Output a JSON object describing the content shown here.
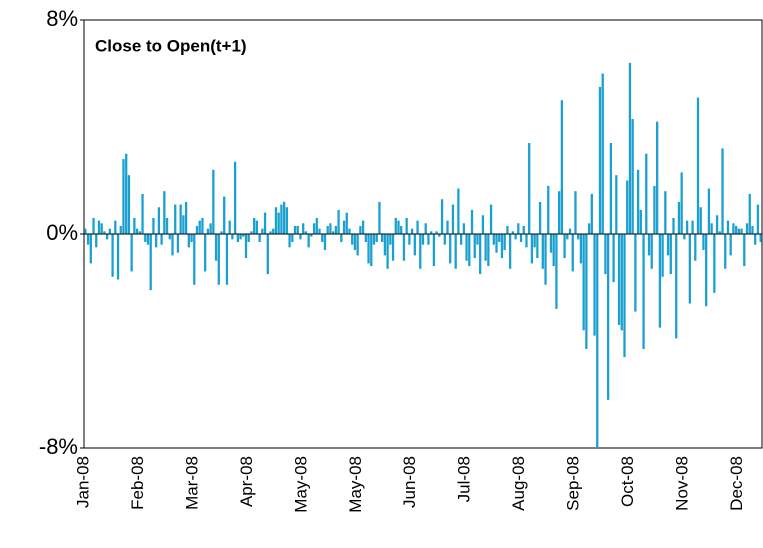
{
  "chart_data": {
    "type": "bar",
    "title": "Close to Open(t+1)",
    "color": "#1aa0d0",
    "ylim": [
      -8,
      8
    ],
    "yticks": [
      {
        "value": -8,
        "label": "-8%"
      },
      {
        "value": 0,
        "label": "0%"
      },
      {
        "value": 8,
        "label": "8%"
      }
    ],
    "categories": [
      "Jan-08",
      null,
      null,
      null,
      null,
      null,
      null,
      null,
      null,
      null,
      null,
      null,
      null,
      null,
      null,
      null,
      null,
      null,
      null,
      null,
      "Feb-08",
      null,
      null,
      null,
      null,
      null,
      null,
      null,
      null,
      null,
      null,
      null,
      null,
      null,
      null,
      null,
      null,
      null,
      null,
      null,
      "Mar-08",
      null,
      null,
      null,
      null,
      null,
      null,
      null,
      null,
      null,
      null,
      null,
      null,
      null,
      null,
      null,
      null,
      null,
      null,
      null,
      "Apr-08",
      null,
      null,
      null,
      null,
      null,
      null,
      null,
      null,
      null,
      null,
      null,
      null,
      null,
      null,
      null,
      null,
      null,
      null,
      null,
      "May-08",
      null,
      null,
      null,
      null,
      null,
      null,
      null,
      null,
      null,
      null,
      null,
      null,
      null,
      null,
      null,
      null,
      null,
      null,
      null,
      "May-08",
      null,
      null,
      null,
      null,
      null,
      null,
      null,
      null,
      null,
      null,
      null,
      null,
      null,
      null,
      null,
      null,
      null,
      null,
      null,
      "Jun-08",
      null,
      null,
      null,
      null,
      null,
      null,
      null,
      null,
      null,
      null,
      null,
      null,
      null,
      null,
      null,
      null,
      null,
      null,
      null,
      "Jul-08",
      null,
      null,
      null,
      null,
      null,
      null,
      null,
      null,
      null,
      null,
      null,
      null,
      null,
      null,
      null,
      null,
      null,
      null,
      null,
      "Aug-08",
      null,
      null,
      null,
      null,
      null,
      null,
      null,
      null,
      null,
      null,
      null,
      null,
      null,
      null,
      null,
      null,
      null,
      null,
      null,
      "Sep-08",
      null,
      null,
      null,
      null,
      null,
      null,
      null,
      null,
      null,
      null,
      null,
      null,
      null,
      null,
      null,
      null,
      null,
      null,
      null,
      "Oct-08",
      null,
      null,
      null,
      null,
      null,
      null,
      null,
      null,
      null,
      null,
      null,
      null,
      null,
      null,
      null,
      null,
      null,
      null,
      null,
      "Nov-08",
      null,
      null,
      null,
      null,
      null,
      null,
      null,
      null,
      null,
      null,
      null,
      null,
      null,
      null,
      null,
      null,
      null,
      null,
      null,
      "Dec-08",
      null,
      null,
      null,
      null,
      null,
      null,
      null,
      null
    ],
    "values": [
      0.2,
      -0.4,
      -1.1,
      0.6,
      -0.5,
      0.5,
      0.4,
      0.1,
      -0.2,
      0.2,
      -1.6,
      0.5,
      -1.7,
      0.3,
      2.8,
      3.0,
      2.2,
      -1.4,
      0.6,
      0.2,
      0.1,
      1.5,
      -0.3,
      -0.4,
      -2.1,
      0.6,
      -0.5,
      1.0,
      -0.4,
      1.6,
      0.6,
      -0.2,
      -0.8,
      1.1,
      -0.7,
      1.1,
      0.7,
      1.2,
      -0.5,
      -0.3,
      -1.9,
      0.3,
      0.5,
      0.6,
      -1.4,
      0.2,
      0.4,
      2.4,
      -1.0,
      -1.9,
      0.1,
      1.4,
      -1.9,
      0.5,
      -0.2,
      2.7,
      -0.3,
      -0.2,
      -0.1,
      -0.9,
      -0.3,
      0.1,
      0.6,
      0.5,
      -0.3,
      0.2,
      0.8,
      -1.5,
      0.1,
      0.2,
      1.0,
      0.8,
      1.1,
      1.2,
      1.0,
      -0.5,
      -0.3,
      0.3,
      0.3,
      -0.2,
      0.4,
      0.1,
      -0.5,
      -0.1,
      0.4,
      0.6,
      0.2,
      -0.3,
      -0.6,
      0.3,
      0.4,
      0.1,
      0.3,
      0.9,
      -0.3,
      0.5,
      0.8,
      0.2,
      -0.4,
      -0.6,
      -0.8,
      0.3,
      0.5,
      -0.3,
      -1.1,
      -1.2,
      -0.4,
      -0.3,
      1.2,
      -0.3,
      -0.8,
      -1.3,
      -0.4,
      -1.0,
      0.6,
      0.5,
      0.3,
      -1.0,
      0.6,
      -0.4,
      0.2,
      -0.8,
      0.5,
      -1.3,
      -0.4,
      0.4,
      -0.4,
      0.1,
      -1.2,
      0.1,
      -0.1,
      1.3,
      -0.4,
      0.5,
      -1.1,
      1.1,
      -1.3,
      1.7,
      -0.4,
      0.4,
      -1.0,
      -1.2,
      0.9,
      -0.9,
      -0.4,
      -1.5,
      0.7,
      -1.0,
      -1.2,
      1.1,
      -0.4,
      -0.7,
      -0.3,
      -0.9,
      -0.6,
      0.3,
      -1.3,
      0.1,
      -0.2,
      0.4,
      -0.3,
      0.3,
      -0.5,
      3.4,
      -1.1,
      -0.5,
      -0.9,
      1.2,
      -1.3,
      -1.9,
      1.8,
      -0.7,
      -1.2,
      -2.8,
      1.6,
      5.0,
      -0.9,
      -0.2,
      0.2,
      -1.4,
      1.6,
      -0.2,
      -1.1,
      -3.6,
      -4.3,
      0.4,
      1.5,
      -3.8,
      -8.0,
      5.5,
      6.0,
      -1.5,
      -6.2,
      3.4,
      -1.8,
      2.2,
      -3.4,
      -3.6,
      -4.6,
      2.0,
      6.4,
      4.3,
      -2.9,
      2.4,
      0.9,
      -4.3,
      3.0,
      -0.8,
      -1.3,
      1.8,
      4.2,
      -3.5,
      -1.6,
      1.6,
      -0.8,
      -1.5,
      0.6,
      -3.9,
      1.2,
      2.3,
      -0.2,
      0.5,
      -2.6,
      0.5,
      -1.0,
      5.1,
      1.0,
      -0.6,
      -2.7,
      1.7,
      0.4,
      -2.2,
      0.7,
      0.1,
      3.2,
      -1.3,
      0.5,
      -0.8,
      0.4,
      0.3,
      0.2,
      0.2,
      -1.2,
      0.4,
      1.5,
      0.3,
      -0.4,
      1.1,
      -0.3
    ]
  }
}
